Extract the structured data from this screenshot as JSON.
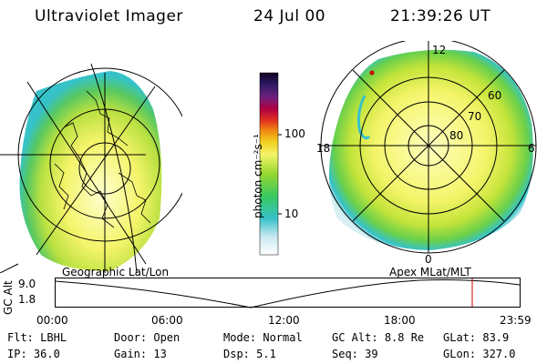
{
  "header": {
    "title": "Ultraviolet Imager",
    "date": "24 Jul 00",
    "time": "21:39:26 UT"
  },
  "geo_panel": {
    "label": "Geographic Lat/Lon"
  },
  "colorbar": {
    "unit": "photon cm⁻²s⁻¹",
    "ticks": [
      "100",
      "10"
    ]
  },
  "apex_panel": {
    "label": "Apex MLat/MLT",
    "mlt_labels": [
      "12",
      "18",
      "6",
      "0"
    ],
    "lat_labels": [
      "60",
      "70",
      "80"
    ]
  },
  "altitude_plot": {
    "ylabel": "GC Alt",
    "yticks": [
      "9.0",
      "1.8"
    ],
    "xticks": [
      "00:00",
      "06:00",
      "12:00",
      "18:00",
      "23:59"
    ]
  },
  "status": {
    "flt": {
      "label": "Flt:",
      "value": "LBHL"
    },
    "ip": {
      "label": "IP:",
      "value": "36.0"
    },
    "door": {
      "label": "Door:",
      "value": "Open"
    },
    "gain": {
      "label": "Gain:",
      "value": "13"
    },
    "mode": {
      "label": "Mode:",
      "value": "Normal"
    },
    "dsp": {
      "label": "Dsp:",
      "value": "5.1"
    },
    "gcalt": {
      "label": "GC Alt:",
      "value": "8.8 Re"
    },
    "seq": {
      "label": "Seq:",
      "value": "39"
    },
    "glat": {
      "label": "GLat:",
      "value": "83.9"
    },
    "glon": {
      "label": "GLon:",
      "value": "327.0"
    }
  },
  "colors": {
    "aurora_yellow": "#f4f46a",
    "aurora_green": "#7fd23a",
    "aurora_cyan": "#36c2c8",
    "marker_red": "#cc0000"
  }
}
